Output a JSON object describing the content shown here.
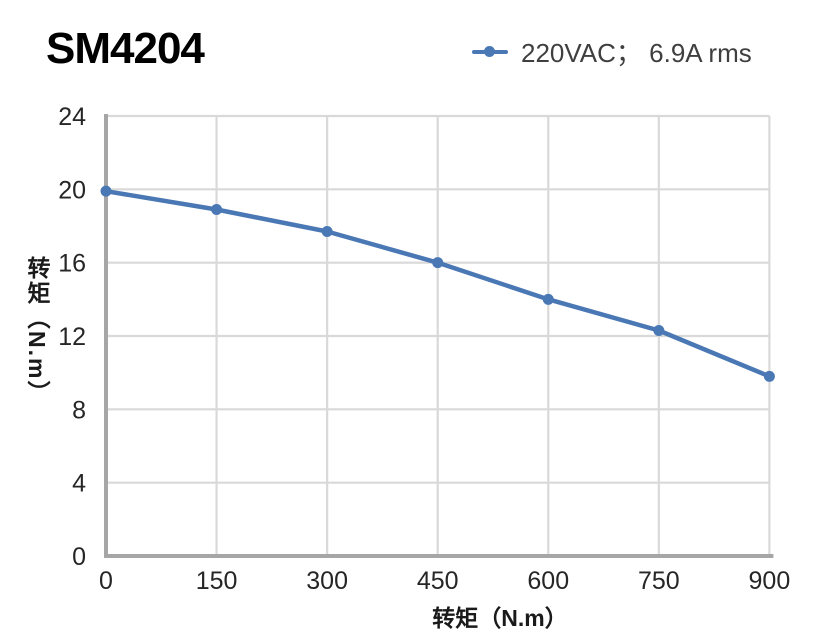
{
  "page": {
    "background": "#FFFFFF"
  },
  "header": {
    "title": "SM4204",
    "legend": {
      "label": "220VAC； 6.9A rms",
      "marker_color": "#4A78B5"
    }
  },
  "chart_data": {
    "type": "line",
    "title": "SM4204",
    "xlabel": "转矩（N.m）",
    "ylabel": "转矩（N.m）",
    "x": [
      0,
      150,
      300,
      450,
      600,
      750,
      900
    ],
    "series": [
      {
        "name": "220VAC； 6.9A rms",
        "color": "#4A78B5",
        "values": [
          19.9,
          18.9,
          17.7,
          16,
          14,
          12.3,
          9.8
        ]
      }
    ],
    "xlim": [
      0,
      900
    ],
    "ylim": [
      0,
      24
    ],
    "x_ticks": [
      0,
      150,
      300,
      450,
      600,
      750,
      900
    ],
    "y_ticks": [
      0,
      4,
      8,
      12,
      16,
      20,
      24
    ],
    "grid": true,
    "legend_position": "top-right",
    "styles": {
      "gridline_color": "#D9D9D9",
      "axis_color": "#A6A6A6",
      "tick_label_color": "#262626",
      "marker": "circle"
    }
  }
}
